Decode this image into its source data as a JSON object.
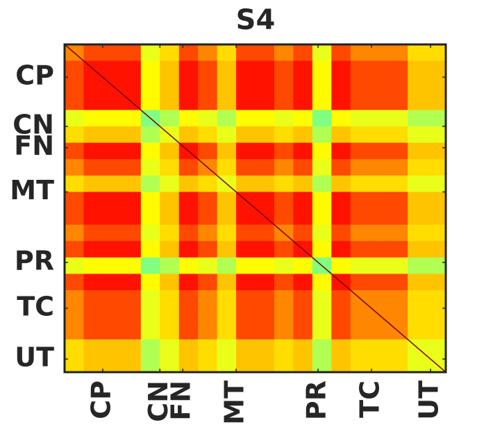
{
  "chart_data": {
    "type": "heatmap",
    "title": "S4",
    "xlim": [
      0,
      100
    ],
    "ylim": [
      0,
      100
    ],
    "xticks": [
      {
        "value": 10,
        "label": "CP"
      },
      {
        "value": 25,
        "label": "CN"
      },
      {
        "value": 31,
        "label": "FN"
      },
      {
        "value": 45,
        "label": "MT"
      },
      {
        "value": 66.5,
        "label": "PR"
      },
      {
        "value": 80.5,
        "label": "TC"
      },
      {
        "value": 96,
        "label": "UT"
      }
    ],
    "yticks": [
      {
        "value": 10,
        "label": "CP"
      },
      {
        "value": 25,
        "label": "CN"
      },
      {
        "value": 31.5,
        "label": "FN"
      },
      {
        "value": 45,
        "label": "MT"
      },
      {
        "value": 66.5,
        "label": "PR"
      },
      {
        "value": 80.5,
        "label": "TC"
      },
      {
        "value": 96,
        "label": "UT"
      }
    ],
    "clim": [
      0.2,
      1
    ],
    "colorscale": [
      [
        0.2,
        "#80ff80"
      ],
      [
        0.3,
        "#c8ff40"
      ],
      [
        0.4,
        "#ffff00"
      ],
      [
        0.55,
        "#ffc000"
      ],
      [
        0.65,
        "#ff8000"
      ],
      [
        0.75,
        "#ff3000"
      ],
      [
        0.85,
        "#ff0000"
      ],
      [
        1,
        "#800000"
      ]
    ],
    "z": [
      [
        0.64,
        0.72,
        0.72,
        0.72,
        0.36,
        0.48,
        0.72,
        0.64,
        0.48,
        0.72,
        0.72,
        0.64,
        0.72,
        0.36,
        0.72,
        0.64,
        0.64,
        0.64,
        0.48,
        0.48
      ],
      [
        0.72,
        0.81,
        0.81,
        0.81,
        0.41,
        0.54,
        0.81,
        0.72,
        0.54,
        0.81,
        0.81,
        0.72,
        0.81,
        0.41,
        0.81,
        0.72,
        0.72,
        0.72,
        0.54,
        0.54
      ],
      [
        0.72,
        0.81,
        0.81,
        0.81,
        0.41,
        0.54,
        0.81,
        0.72,
        0.54,
        0.81,
        0.81,
        0.72,
        0.81,
        0.41,
        0.81,
        0.72,
        0.72,
        0.72,
        0.54,
        0.54
      ],
      [
        0.72,
        0.81,
        0.81,
        0.81,
        0.41,
        0.54,
        0.81,
        0.72,
        0.54,
        0.81,
        0.81,
        0.72,
        0.81,
        0.41,
        0.81,
        0.72,
        0.72,
        0.72,
        0.54,
        0.54
      ],
      [
        0.36,
        0.41,
        0.41,
        0.41,
        0.2,
        0.27,
        0.41,
        0.36,
        0.27,
        0.41,
        0.41,
        0.36,
        0.41,
        0.2,
        0.41,
        0.36,
        0.36,
        0.36,
        0.27,
        0.27
      ],
      [
        0.48,
        0.54,
        0.54,
        0.54,
        0.27,
        0.36,
        0.54,
        0.48,
        0.36,
        0.54,
        0.54,
        0.48,
        0.54,
        0.27,
        0.54,
        0.48,
        0.48,
        0.48,
        0.36,
        0.36
      ],
      [
        0.72,
        0.81,
        0.81,
        0.81,
        0.41,
        0.54,
        0.81,
        0.72,
        0.54,
        0.81,
        0.81,
        0.72,
        0.81,
        0.41,
        0.81,
        0.72,
        0.72,
        0.72,
        0.54,
        0.54
      ],
      [
        0.64,
        0.72,
        0.72,
        0.72,
        0.36,
        0.48,
        0.72,
        0.64,
        0.48,
        0.72,
        0.72,
        0.64,
        0.72,
        0.36,
        0.72,
        0.64,
        0.64,
        0.64,
        0.48,
        0.48
      ],
      [
        0.48,
        0.54,
        0.54,
        0.54,
        0.27,
        0.36,
        0.54,
        0.48,
        0.36,
        0.54,
        0.54,
        0.48,
        0.54,
        0.27,
        0.54,
        0.48,
        0.48,
        0.48,
        0.36,
        0.36
      ],
      [
        0.72,
        0.81,
        0.81,
        0.81,
        0.41,
        0.54,
        0.81,
        0.72,
        0.54,
        0.81,
        0.81,
        0.72,
        0.81,
        0.41,
        0.81,
        0.72,
        0.72,
        0.72,
        0.54,
        0.54
      ],
      [
        0.72,
        0.81,
        0.81,
        0.81,
        0.41,
        0.54,
        0.81,
        0.72,
        0.54,
        0.81,
        0.81,
        0.72,
        0.81,
        0.41,
        0.81,
        0.72,
        0.72,
        0.72,
        0.54,
        0.54
      ],
      [
        0.64,
        0.72,
        0.72,
        0.72,
        0.36,
        0.48,
        0.72,
        0.64,
        0.48,
        0.72,
        0.72,
        0.64,
        0.72,
        0.36,
        0.72,
        0.64,
        0.64,
        0.64,
        0.48,
        0.48
      ],
      [
        0.72,
        0.81,
        0.81,
        0.81,
        0.41,
        0.54,
        0.81,
        0.72,
        0.54,
        0.81,
        0.81,
        0.72,
        0.81,
        0.41,
        0.81,
        0.72,
        0.72,
        0.72,
        0.54,
        0.54
      ],
      [
        0.36,
        0.41,
        0.41,
        0.41,
        0.2,
        0.27,
        0.41,
        0.36,
        0.27,
        0.41,
        0.41,
        0.36,
        0.41,
        0.2,
        0.41,
        0.36,
        0.36,
        0.36,
        0.27,
        0.27
      ],
      [
        0.72,
        0.81,
        0.81,
        0.81,
        0.41,
        0.54,
        0.81,
        0.72,
        0.54,
        0.81,
        0.81,
        0.72,
        0.81,
        0.41,
        0.81,
        0.72,
        0.72,
        0.72,
        0.54,
        0.54
      ],
      [
        0.64,
        0.72,
        0.72,
        0.72,
        0.36,
        0.48,
        0.72,
        0.64,
        0.48,
        0.72,
        0.72,
        0.64,
        0.72,
        0.36,
        0.72,
        0.64,
        0.64,
        0.64,
        0.48,
        0.48
      ],
      [
        0.64,
        0.72,
        0.72,
        0.72,
        0.36,
        0.48,
        0.72,
        0.64,
        0.48,
        0.72,
        0.72,
        0.64,
        0.72,
        0.36,
        0.72,
        0.64,
        0.64,
        0.64,
        0.48,
        0.48
      ],
      [
        0.64,
        0.72,
        0.72,
        0.72,
        0.36,
        0.48,
        0.72,
        0.64,
        0.48,
        0.72,
        0.72,
        0.64,
        0.72,
        0.36,
        0.72,
        0.64,
        0.64,
        0.64,
        0.48,
        0.48
      ],
      [
        0.48,
        0.54,
        0.54,
        0.54,
        0.27,
        0.36,
        0.54,
        0.48,
        0.36,
        0.54,
        0.54,
        0.48,
        0.54,
        0.27,
        0.54,
        0.48,
        0.48,
        0.48,
        0.36,
        0.36
      ],
      [
        0.48,
        0.54,
        0.54,
        0.54,
        0.27,
        0.36,
        0.54,
        0.48,
        0.36,
        0.54,
        0.54,
        0.48,
        0.54,
        0.27,
        0.54,
        0.48,
        0.48,
        0.48,
        0.36,
        0.36
      ]
    ]
  }
}
